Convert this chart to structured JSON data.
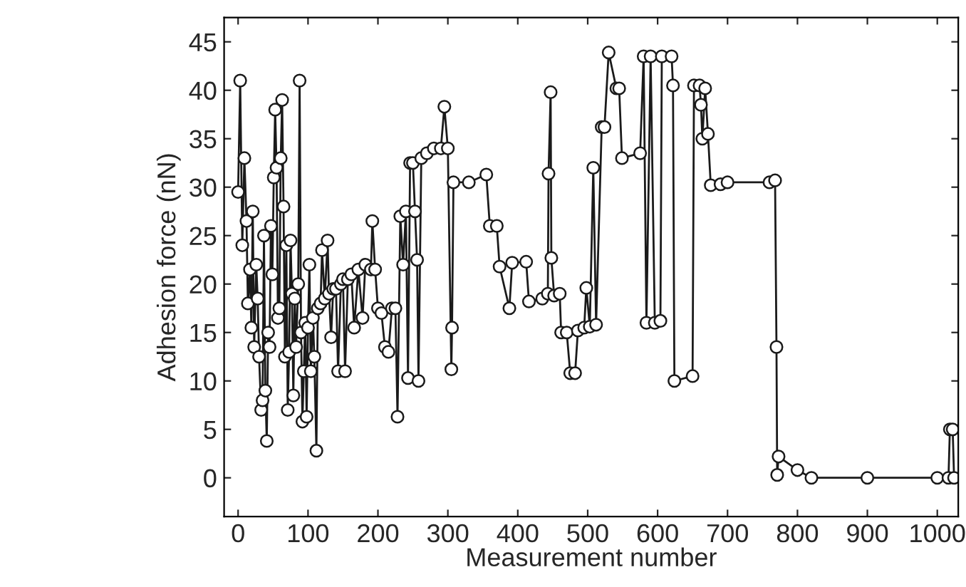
{
  "chart_data": {
    "type": "line",
    "xlabel": "Measurement number",
    "ylabel": "Adhesion force (nN)",
    "xlim": [
      -20,
      1030
    ],
    "ylim": [
      -4,
      47.5
    ],
    "xticks": [
      0,
      100,
      200,
      300,
      400,
      500,
      600,
      700,
      800,
      900,
      1000
    ],
    "yticks": [
      0,
      5,
      10,
      15,
      20,
      25,
      30,
      35,
      40,
      45
    ],
    "grid": false,
    "marker": "circle",
    "line_style": "solid",
    "series": [
      {
        "color": "#1a1a1a",
        "x": [
          0,
          3,
          6,
          9,
          12,
          14,
          17,
          19,
          21,
          23,
          26,
          28,
          30,
          33,
          35,
          37,
          39,
          41,
          43,
          45,
          47,
          49,
          51,
          53,
          55,
          57,
          59,
          61,
          63,
          65,
          67,
          69,
          71,
          73,
          75,
          77,
          79,
          81,
          83,
          86,
          88,
          90,
          92,
          94,
          96,
          98,
          100,
          102,
          104,
          107,
          109,
          112,
          114,
          118,
          120,
          124,
          128,
          130,
          133,
          136,
          140,
          143,
          147,
          150,
          153,
          157,
          162,
          166,
          172,
          178,
          182,
          190,
          192,
          196,
          200,
          205,
          210,
          215,
          220,
          225,
          228,
          232,
          236,
          240,
          243,
          246,
          250,
          253,
          256,
          258,
          262,
          270,
          280,
          290,
          295,
          300,
          305,
          306,
          308,
          330,
          355,
          360,
          370,
          374,
          388,
          392,
          412,
          416,
          435,
          443,
          444,
          447,
          448,
          452,
          460,
          462,
          470,
          475,
          482,
          486,
          495,
          498,
          503,
          508,
          512,
          520,
          524,
          530,
          541,
          545,
          549,
          575,
          580,
          584,
          590,
          596,
          604,
          606,
          620,
          622,
          624,
          650,
          652,
          660,
          662,
          664,
          668,
          672,
          676,
          690,
          700,
          760,
          768,
          770,
          771,
          773,
          800,
          820,
          900,
          1000,
          1016,
          1018,
          1022,
          1024
        ],
        "values": [
          29.5,
          41,
          24,
          33,
          26.5,
          18,
          21.5,
          15.5,
          27.5,
          13.5,
          22,
          18.5,
          12.5,
          7,
          8,
          25,
          9,
          3.8,
          15,
          13.5,
          26,
          21,
          31,
          38,
          32,
          16.5,
          17.5,
          33,
          39,
          28,
          12.5,
          24,
          7,
          13,
          24.5,
          19,
          8.5,
          18.5,
          13.5,
          20,
          41,
          15,
          5.8,
          11,
          16,
          6.3,
          15.5,
          22,
          11,
          16.5,
          12.5,
          2.8,
          17.5,
          18,
          23.5,
          18.5,
          24.5,
          19,
          14.5,
          19.5,
          19.5,
          11,
          20,
          20.5,
          11,
          20.5,
          21,
          15.5,
          21.5,
          16.5,
          22,
          21.5,
          26.5,
          21.5,
          17.5,
          17,
          13.5,
          13,
          17.5,
          17.5,
          6.3,
          27,
          22,
          27.5,
          10.3,
          32.5,
          32.5,
          27.5,
          22.5,
          10,
          33,
          33.5,
          34,
          34,
          38.3,
          34,
          11.2,
          15.5,
          30.5,
          30.5,
          31.3,
          26,
          26,
          21.8,
          17.5,
          22.2,
          22.3,
          18.2,
          18.5,
          19,
          31.4,
          39.8,
          22.7,
          18.8,
          19,
          15,
          15,
          10.8,
          10.8,
          15.2,
          15.5,
          19.6,
          15.6,
          32,
          15.8,
          36.2,
          36.2,
          43.9,
          40.2,
          40.2,
          33,
          33.5,
          43.5,
          16,
          43.5,
          16,
          16.2,
          43.5,
          43.5,
          40.5,
          10,
          10.5,
          40.5,
          40.5,
          38.5,
          35,
          40.2,
          35.5,
          30.2,
          30.3,
          30.5,
          30.5,
          30.7,
          13.5,
          0.3,
          2.2,
          0.8,
          0,
          0,
          0,
          0,
          5,
          5,
          0
        ]
      }
    ]
  }
}
